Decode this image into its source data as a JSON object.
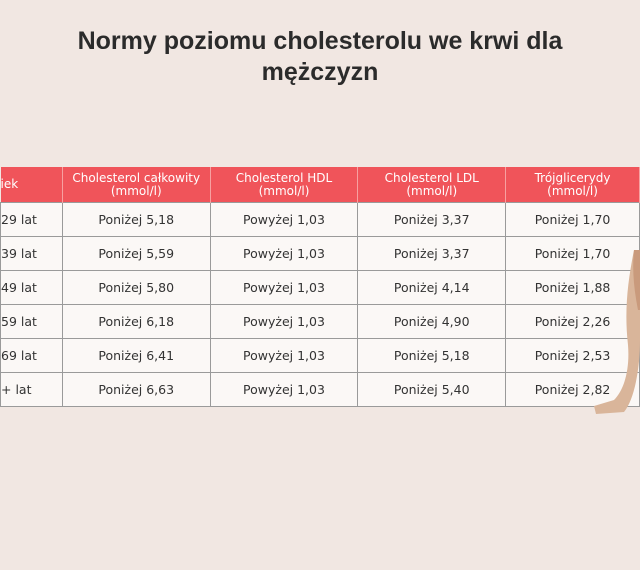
{
  "header": {
    "title": "Normy poziomu cholesterolu we krwi dla mężczyzn"
  },
  "table": {
    "columns": [
      "iek",
      "Cholesterol całkowity (mmol/l)",
      "Cholesterol HDL (mmol/l)",
      "Cholesterol LDL (mmol/l)",
      "Trójglicerydy (mmol/l)"
    ],
    "rows": [
      [
        "29 lat",
        "Poniżej 5,18",
        "Powyżej 1,03",
        "Poniżej 3,37",
        "Poniżej 1,70"
      ],
      [
        "39 lat",
        "Poniżej 5,59",
        "Powyżej 1,03",
        "Poniżej 3,37",
        "Poniżej 1,70"
      ],
      [
        "49 lat",
        "Poniżej 5,80",
        "Powyżej 1,03",
        "Poniżej 4,14",
        "Poniżej 1,88"
      ],
      [
        "59 lat",
        "Poniżej 6,18",
        "Powyżej 1,03",
        "Poniżej 4,90",
        "Poniżej 2,26"
      ],
      [
        "69 lat",
        "Poniżej 6,41",
        "Powyżej 1,03",
        "Poniżej 5,18",
        "Poniżej 2,53"
      ],
      [
        "+ lat",
        "Poniżej 6,63",
        "Powyżej 1,03",
        "Poniżej 5,40",
        "Poniżej 2,82"
      ]
    ]
  }
}
